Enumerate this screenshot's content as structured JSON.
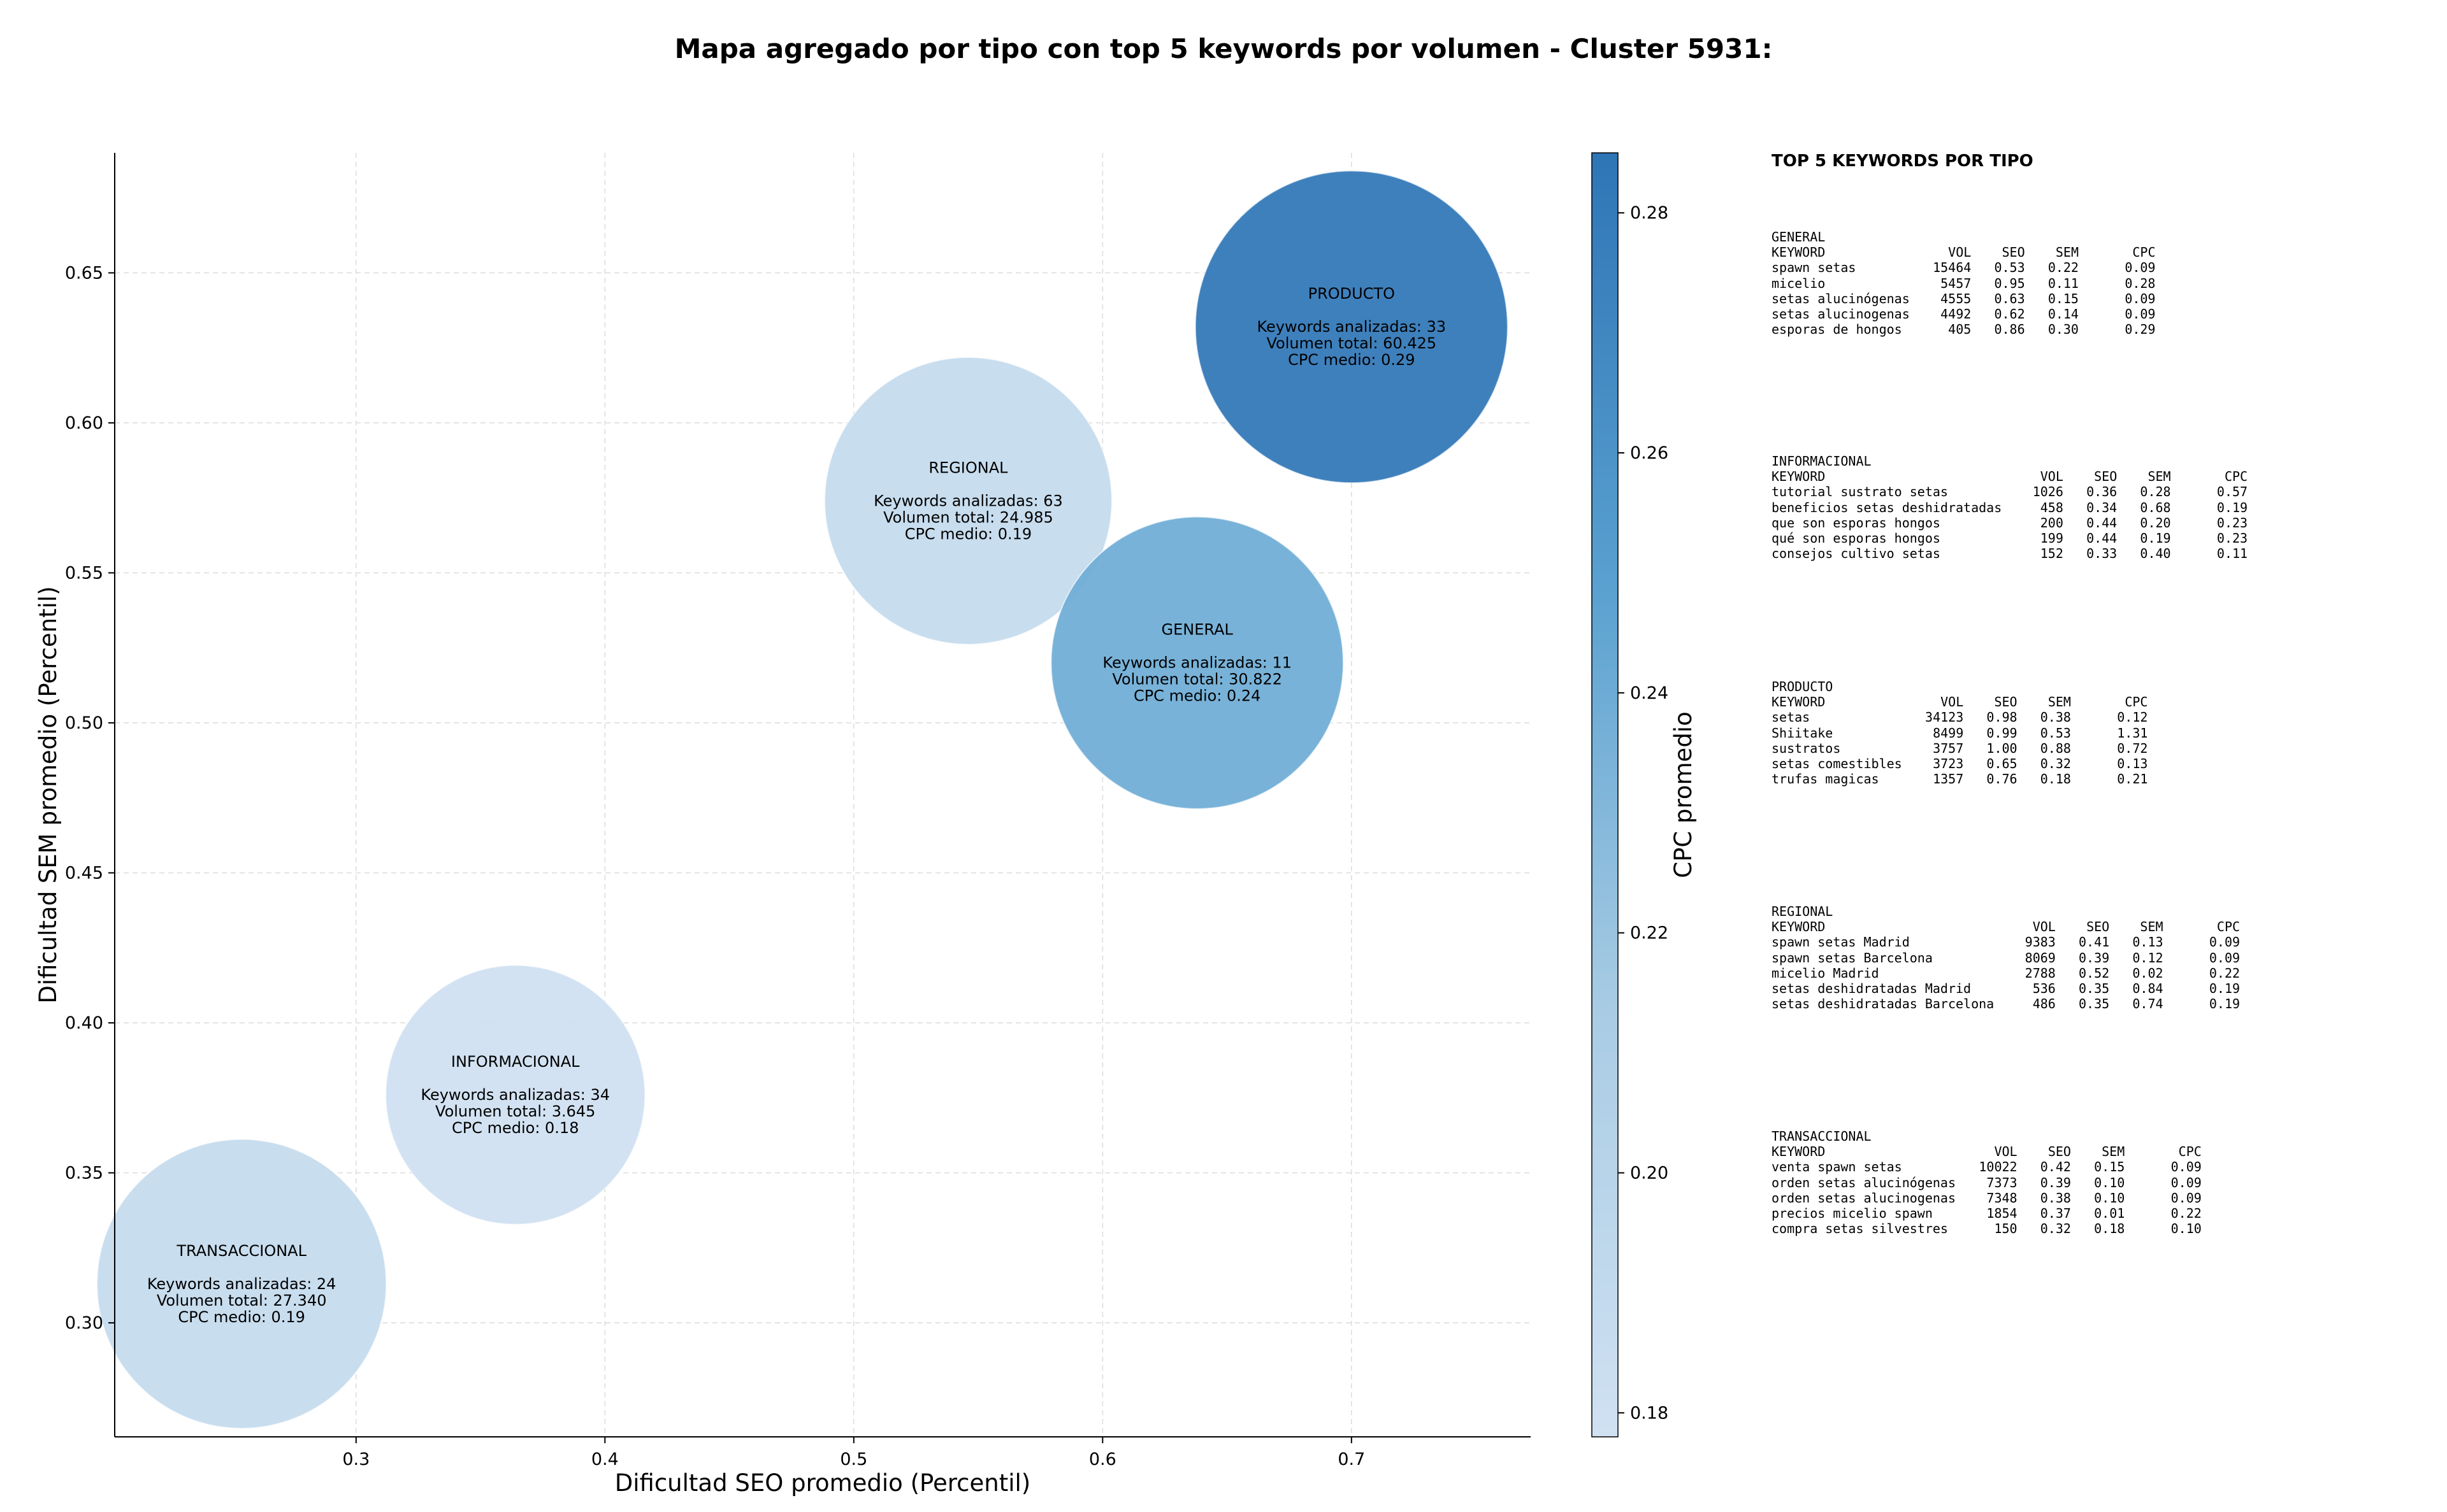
{
  "chart_data": {
    "type": "scatter",
    "subtype": "bubble",
    "title": "Mapa agregado por tipo con top 5 keywords por volumen - Cluster 5931:",
    "xlabel": "Dificultad SEO promedio (Percentil)",
    "ylabel": "Dificultad SEM promedio (Percentil)",
    "xlim": [
      0.203,
      0.772
    ],
    "ylim": [
      0.262,
      0.69
    ],
    "xticks": [
      "0.3",
      "0.4",
      "0.5",
      "0.6",
      "0.7"
    ],
    "xtick_values": [
      0.3,
      0.4,
      0.5,
      0.6,
      0.7
    ],
    "yticks": [
      "0.30",
      "0.35",
      "0.40",
      "0.45",
      "0.50",
      "0.55",
      "0.60",
      "0.65"
    ],
    "ytick_values": [
      0.3,
      0.35,
      0.4,
      0.45,
      0.5,
      0.55,
      0.6,
      0.65
    ],
    "grid": true,
    "colorbar": {
      "label": "CPC promedio",
      "range": [
        0.178,
        0.285
      ],
      "ticks": [
        "0.18",
        "0.20",
        "0.22",
        "0.24",
        "0.26",
        "0.28"
      ],
      "tick_values": [
        0.18,
        0.2,
        0.22,
        0.24,
        0.26,
        0.28
      ],
      "color_low": "#d0e1f2",
      "color_high": "#2e75b6",
      "colormap": "Blues"
    },
    "bubbles": [
      {
        "name": "PRODUCTO",
        "x": 0.7,
        "y": 0.632,
        "cpc": 0.285,
        "volume": 60425,
        "lines": [
          "Keywords analizadas: 33",
          "Volumen total: 60.425",
          "CPC medio: 0.29"
        ]
      },
      {
        "name": "REGIONAL",
        "x": 0.546,
        "y": 0.574,
        "cpc": 0.19,
        "volume": 24985,
        "lines": [
          "Keywords analizadas: 63",
          "Volumen total: 24.985",
          "CPC medio: 0.19"
        ]
      },
      {
        "name": "GENERAL",
        "x": 0.638,
        "y": 0.52,
        "cpc": 0.24,
        "volume": 30822,
        "lines": [
          "Keywords analizadas: 11",
          "Volumen total: 30.822",
          "CPC medio: 0.24"
        ]
      },
      {
        "name": "INFORMACIONAL",
        "x": 0.364,
        "y": 0.376,
        "cpc": 0.18,
        "volume": 3645,
        "lines": [
          "Keywords analizadas: 34",
          "Volumen total: 3.645",
          "CPC medio: 0.18"
        ]
      },
      {
        "name": "TRANSACCIONAL",
        "x": 0.254,
        "y": 0.313,
        "cpc": 0.19,
        "volume": 27340,
        "lines": [
          "Keywords analizadas: 24",
          "Volumen total: 27.340",
          "CPC medio: 0.19"
        ]
      }
    ]
  },
  "side_panel": {
    "title": "TOP 5 KEYWORDS POR TIPO",
    "headers": [
      "KEYWORD",
      "VOL",
      "SEO",
      "SEM",
      "CPC"
    ],
    "groups": [
      {
        "name": "GENERAL",
        "rows": [
          [
            "spawn setas",
            "15464",
            "0.53",
            "0.22",
            "0.09"
          ],
          [
            "micelio",
            "5457",
            "0.95",
            "0.11",
            "0.28"
          ],
          [
            "setas alucinógenas",
            "4555",
            "0.63",
            "0.15",
            "0.09"
          ],
          [
            "setas alucinogenas",
            "4492",
            "0.62",
            "0.14",
            "0.09"
          ],
          [
            "esporas de hongos",
            "405",
            "0.86",
            "0.30",
            "0.29"
          ]
        ]
      },
      {
        "name": "INFORMACIONAL",
        "rows": [
          [
            "tutorial sustrato setas",
            "1026",
            "0.36",
            "0.28",
            "0.57"
          ],
          [
            "beneficios setas deshidratadas",
            "458",
            "0.34",
            "0.68",
            "0.19"
          ],
          [
            "que son esporas hongos",
            "200",
            "0.44",
            "0.20",
            "0.23"
          ],
          [
            "qué son esporas hongos",
            "199",
            "0.44",
            "0.19",
            "0.23"
          ],
          [
            "consejos cultivo setas",
            "152",
            "0.33",
            "0.40",
            "0.11"
          ]
        ]
      },
      {
        "name": "PRODUCTO",
        "rows": [
          [
            "setas",
            "34123",
            "0.98",
            "0.38",
            "0.12"
          ],
          [
            "Shiitake",
            "8499",
            "0.99",
            "0.53",
            "1.31"
          ],
          [
            "sustratos",
            "3757",
            "1.00",
            "0.88",
            "0.72"
          ],
          [
            "setas comestibles",
            "3723",
            "0.65",
            "0.32",
            "0.13"
          ],
          [
            "trufas magicas",
            "1357",
            "0.76",
            "0.18",
            "0.21"
          ]
        ]
      },
      {
        "name": "REGIONAL",
        "rows": [
          [
            "spawn setas Madrid",
            "9383",
            "0.41",
            "0.13",
            "0.09"
          ],
          [
            "spawn setas Barcelona",
            "8069",
            "0.39",
            "0.12",
            "0.09"
          ],
          [
            "micelio Madrid",
            "2788",
            "0.52",
            "0.02",
            "0.22"
          ],
          [
            "setas deshidratadas Madrid",
            "536",
            "0.35",
            "0.84",
            "0.19"
          ],
          [
            "setas deshidratadas Barcelona",
            "486",
            "0.35",
            "0.74",
            "0.19"
          ]
        ]
      },
      {
        "name": "TRANSACCIONAL",
        "rows": [
          [
            "venta spawn setas",
            "10022",
            "0.42",
            "0.15",
            "0.09"
          ],
          [
            "orden setas alucinógenas",
            "7373",
            "0.39",
            "0.10",
            "0.09"
          ],
          [
            "orden setas alucinogenas",
            "7348",
            "0.38",
            "0.10",
            "0.09"
          ],
          [
            "precios micelio spawn",
            "1854",
            "0.37",
            "0.01",
            "0.22"
          ],
          [
            "compra setas silvestres",
            "150",
            "0.32",
            "0.18",
            "0.10"
          ]
        ]
      }
    ]
  }
}
